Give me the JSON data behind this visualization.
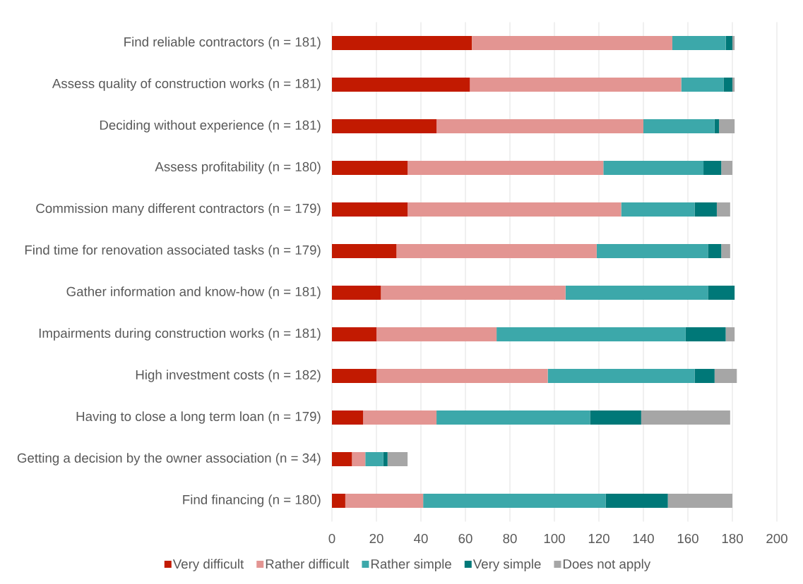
{
  "chart_data": {
    "type": "bar",
    "orientation": "horizontal",
    "stacked": true,
    "categories": [
      "Find reliable contractors (n = 181)",
      "Assess quality of construction works (n = 181)",
      "Deciding without experience (n = 181)",
      "Assess profitability (n = 180)",
      "Commission many different contractors (n = 179)",
      "Find time for renovation associated tasks (n = 179)",
      "Gather information and know-how (n = 181)",
      "Impairments during construction works (n = 181)",
      "High investment costs (n = 182)",
      "Having to close a long term loan (n = 179)",
      "Getting a decision by the owner association (n = 34)",
      "Find financing (n = 180)"
    ],
    "series": [
      {
        "name": "Very difficult",
        "color": "#c21a01",
        "values": [
          63,
          62,
          47,
          34,
          34,
          29,
          22,
          20,
          20,
          14,
          9,
          6
        ]
      },
      {
        "name": "Rather difficult",
        "color": "#e39592",
        "values": [
          90,
          95,
          93,
          88,
          96,
          90,
          83,
          54,
          77,
          33,
          6,
          35
        ]
      },
      {
        "name": "Rather simple",
        "color": "#3ca8aa",
        "values": [
          24,
          19,
          32,
          45,
          33,
          50,
          64,
          85,
          66,
          69,
          8,
          82
        ]
      },
      {
        "name": "Very simple",
        "color": "#007878",
        "values": [
          3,
          4,
          2,
          8,
          10,
          6,
          12,
          18,
          9,
          23,
          2,
          28
        ]
      },
      {
        "name": "Does not apply",
        "color": "#a6a6a6",
        "values": [
          1,
          1,
          7,
          5,
          6,
          4,
          0,
          4,
          10,
          40,
          9,
          29
        ]
      }
    ],
    "xlim": [
      0,
      200
    ],
    "xticks": [
      0,
      20,
      40,
      60,
      80,
      100,
      120,
      140,
      160,
      180,
      200
    ],
    "grid": "x",
    "legend": "bottom"
  }
}
